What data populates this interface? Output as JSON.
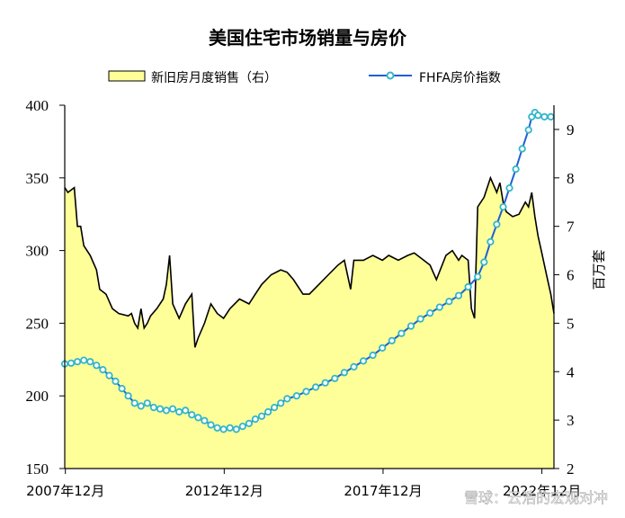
{
  "chart_data": {
    "type": "area+line",
    "title": "美国住宅市场销量与房价",
    "legend": [
      {
        "label": "新旧房月度销售（右）",
        "marker": "area",
        "color": "#ffff99",
        "edge": "#000000"
      },
      {
        "label": "FHFA房价指数",
        "marker": "line-circle",
        "color": "#1f5fd6",
        "marker_color": "#33b5c8"
      }
    ],
    "legend_position": "top",
    "left_axis": {
      "ticks": [
        "150",
        "200",
        "250",
        "300",
        "350",
        "400"
      ],
      "range": [
        150,
        400
      ]
    },
    "right_axis": {
      "title": "百万套",
      "ticks": [
        "2",
        "3",
        "4",
        "5",
        "6",
        "7",
        "8",
        "9"
      ],
      "range": [
        2,
        9.5
      ]
    },
    "x_axis": {
      "ticks": [
        "2007年12月",
        "2012年12月",
        "2017年12月",
        "2022年12月"
      ],
      "tick_x": [
        2007.92,
        2012.92,
        2017.92,
        2022.92
      ],
      "range": [
        2007.9,
        2023.3
      ]
    },
    "grid": false,
    "series": [
      {
        "name": "新旧房月度销售（右）",
        "type": "area",
        "axis": "right",
        "color": "#ffff99",
        "points": [
          [
            2007.9,
            7.8
          ],
          [
            2008.0,
            7.7
          ],
          [
            2008.2,
            7.8
          ],
          [
            2008.3,
            7.0
          ],
          [
            2008.4,
            7.0
          ],
          [
            2008.5,
            6.6
          ],
          [
            2008.7,
            6.4
          ],
          [
            2008.9,
            6.1
          ],
          [
            2009.0,
            5.7
          ],
          [
            2009.2,
            5.6
          ],
          [
            2009.4,
            5.3
          ],
          [
            2009.6,
            5.2
          ],
          [
            2009.9,
            5.15
          ],
          [
            2010.0,
            5.2
          ],
          [
            2010.1,
            5.0
          ],
          [
            2010.2,
            4.9
          ],
          [
            2010.3,
            5.3
          ],
          [
            2010.4,
            4.9
          ],
          [
            2010.5,
            5.0
          ],
          [
            2010.6,
            5.15
          ],
          [
            2010.8,
            5.3
          ],
          [
            2011.0,
            5.5
          ],
          [
            2011.1,
            5.8
          ],
          [
            2011.2,
            6.4
          ],
          [
            2011.3,
            5.4
          ],
          [
            2011.5,
            5.1
          ],
          [
            2011.7,
            5.4
          ],
          [
            2011.9,
            5.6
          ],
          [
            2012.0,
            4.5
          ],
          [
            2012.1,
            4.7
          ],
          [
            2012.3,
            5.0
          ],
          [
            2012.5,
            5.4
          ],
          [
            2012.7,
            5.2
          ],
          [
            2012.9,
            5.1
          ],
          [
            2013.1,
            5.3
          ],
          [
            2013.4,
            5.5
          ],
          [
            2013.7,
            5.4
          ],
          [
            2013.9,
            5.6
          ],
          [
            2014.1,
            5.8
          ],
          [
            2014.4,
            6.0
          ],
          [
            2014.7,
            6.1
          ],
          [
            2014.9,
            6.05
          ],
          [
            2015.1,
            5.9
          ],
          [
            2015.4,
            5.6
          ],
          [
            2015.6,
            5.6
          ],
          [
            2015.9,
            5.8
          ],
          [
            2016.2,
            6.0
          ],
          [
            2016.5,
            6.2
          ],
          [
            2016.7,
            6.3
          ],
          [
            2016.9,
            5.7
          ],
          [
            2017.0,
            6.3
          ],
          [
            2017.3,
            6.3
          ],
          [
            2017.6,
            6.4
          ],
          [
            2017.9,
            6.3
          ],
          [
            2018.1,
            6.4
          ],
          [
            2018.4,
            6.3
          ],
          [
            2018.7,
            6.4
          ],
          [
            2018.9,
            6.45
          ],
          [
            2019.2,
            6.3
          ],
          [
            2019.4,
            6.2
          ],
          [
            2019.6,
            5.9
          ],
          [
            2019.9,
            6.4
          ],
          [
            2020.1,
            6.5
          ],
          [
            2020.3,
            6.3
          ],
          [
            2020.4,
            6.4
          ],
          [
            2020.6,
            6.3
          ],
          [
            2020.7,
            5.3
          ],
          [
            2020.8,
            5.1
          ],
          [
            2020.9,
            7.4
          ],
          [
            2021.1,
            7.6
          ],
          [
            2021.3,
            8.0
          ],
          [
            2021.5,
            7.7
          ],
          [
            2021.6,
            7.9
          ],
          [
            2021.7,
            7.5
          ],
          [
            2021.8,
            7.3
          ],
          [
            2022.0,
            7.2
          ],
          [
            2022.2,
            7.25
          ],
          [
            2022.4,
            7.5
          ],
          [
            2022.5,
            7.4
          ],
          [
            2022.6,
            7.7
          ],
          [
            2022.7,
            7.2
          ],
          [
            2022.8,
            6.8
          ],
          [
            2022.9,
            6.5
          ],
          [
            2023.0,
            6.2
          ],
          [
            2023.1,
            5.9
          ],
          [
            2023.2,
            5.6
          ],
          [
            2023.3,
            5.2
          ]
        ]
      },
      {
        "name": "FHFA房价指数",
        "type": "line",
        "axis": "left",
        "color": "#1f5fd6",
        "marker_color": "#33b5c8",
        "points": [
          [
            2007.9,
            222
          ],
          [
            2008.1,
            222.5
          ],
          [
            2008.3,
            223.5
          ],
          [
            2008.5,
            224.5
          ],
          [
            2008.7,
            223.5
          ],
          [
            2008.9,
            221
          ],
          [
            2009.1,
            218
          ],
          [
            2009.3,
            214
          ],
          [
            2009.5,
            210
          ],
          [
            2009.7,
            205
          ],
          [
            2009.9,
            200
          ],
          [
            2010.1,
            195
          ],
          [
            2010.3,
            193
          ],
          [
            2010.5,
            195
          ],
          [
            2010.7,
            192
          ],
          [
            2010.9,
            191
          ],
          [
            2011.1,
            190
          ],
          [
            2011.3,
            191
          ],
          [
            2011.5,
            189
          ],
          [
            2011.7,
            190
          ],
          [
            2011.9,
            187
          ],
          [
            2012.1,
            185
          ],
          [
            2012.3,
            183
          ],
          [
            2012.5,
            180
          ],
          [
            2012.7,
            178
          ],
          [
            2012.9,
            177
          ],
          [
            2013.1,
            178
          ],
          [
            2013.3,
            177
          ],
          [
            2013.5,
            179
          ],
          [
            2013.7,
            181
          ],
          [
            2013.9,
            184
          ],
          [
            2014.1,
            186
          ],
          [
            2014.3,
            189
          ],
          [
            2014.5,
            192
          ],
          [
            2014.7,
            195
          ],
          [
            2014.9,
            198
          ],
          [
            2015.2,
            200
          ],
          [
            2015.5,
            203
          ],
          [
            2015.8,
            206
          ],
          [
            2016.1,
            209
          ],
          [
            2016.4,
            212
          ],
          [
            2016.7,
            216
          ],
          [
            2017.0,
            220
          ],
          [
            2017.3,
            224
          ],
          [
            2017.6,
            228
          ],
          [
            2017.9,
            233
          ],
          [
            2018.2,
            238
          ],
          [
            2018.5,
            243
          ],
          [
            2018.8,
            248
          ],
          [
            2019.1,
            253
          ],
          [
            2019.4,
            257
          ],
          [
            2019.7,
            261
          ],
          [
            2020.0,
            265
          ],
          [
            2020.3,
            269
          ],
          [
            2020.6,
            275
          ],
          [
            2020.9,
            282
          ],
          [
            2021.1,
            292
          ],
          [
            2021.3,
            306
          ],
          [
            2021.5,
            318
          ],
          [
            2021.7,
            330
          ],
          [
            2021.9,
            343
          ],
          [
            2022.1,
            356
          ],
          [
            2022.3,
            370
          ],
          [
            2022.5,
            383
          ],
          [
            2022.6,
            392
          ],
          [
            2022.7,
            395
          ],
          [
            2022.8,
            393
          ],
          [
            2023.0,
            392
          ],
          [
            2023.2,
            392
          ]
        ]
      }
    ]
  },
  "watermark": "雪球：云浩的宏观对冲"
}
